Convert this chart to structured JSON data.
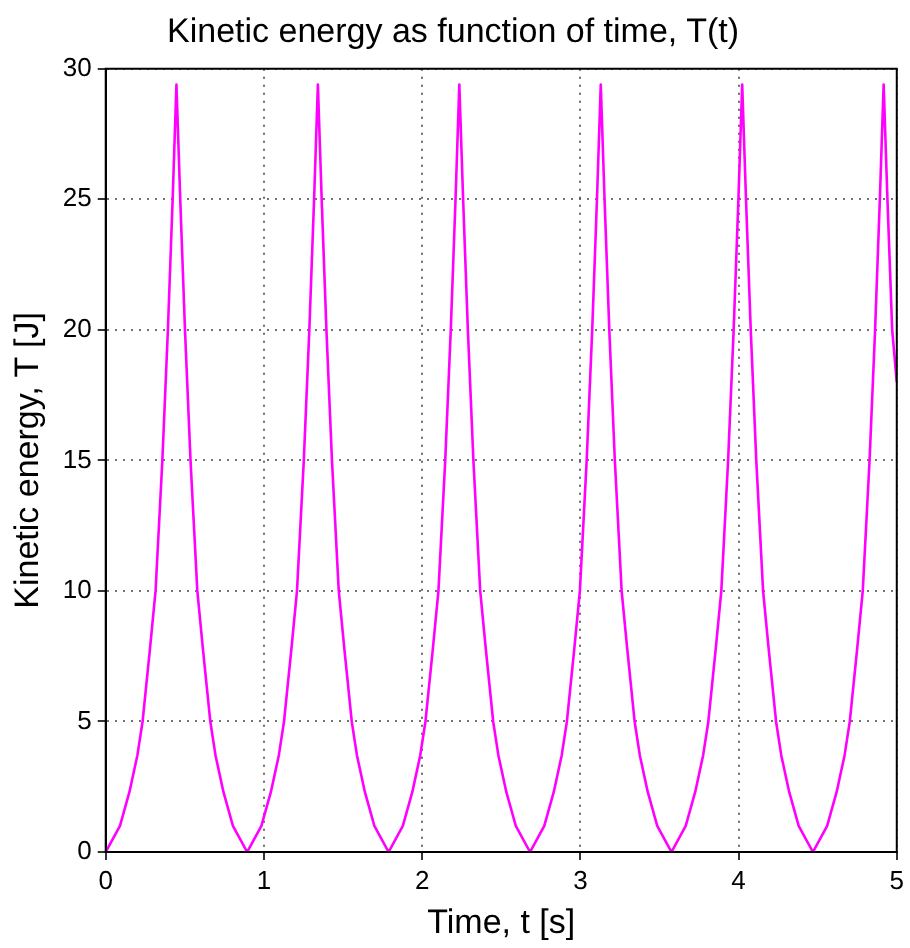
{
  "chart_data": {
    "type": "line",
    "title": "Kinetic energy as function of time, T(t)",
    "xlabel": "Time, t [s]",
    "ylabel": "Kinetic energy, T [J]",
    "xlim": [
      0,
      5
    ],
    "xticks": [
      0,
      1,
      2,
      3,
      4,
      5
    ],
    "ylim": [
      0,
      30
    ],
    "yticks": [
      0,
      5,
      10,
      15,
      20,
      25,
      30
    ],
    "grid": true,
    "legend": false,
    "marker": "none",
    "line_style": "solid",
    "series": [
      {
        "color": "#ff00ff",
        "x": [
          0,
          0.09,
          0.15,
          0.2,
          0.233,
          0.28,
          0.315,
          0.358,
          0.393,
          0.423,
          0.447,
          0.471,
          0.501,
          0.536,
          0.579,
          0.614,
          0.661,
          0.694,
          0.744,
          0.804,
          0.894,
          0.984,
          1.044,
          1.094,
          1.127,
          1.174,
          1.209,
          1.252,
          1.287,
          1.317,
          1.341,
          1.365,
          1.395,
          1.43,
          1.473,
          1.508,
          1.555,
          1.588,
          1.638,
          1.698,
          1.788,
          1.878,
          1.938,
          1.988,
          2.021,
          2.068,
          2.103,
          2.146,
          2.181,
          2.211,
          2.235,
          2.259,
          2.289,
          2.324,
          2.367,
          2.402,
          2.449,
          2.482,
          2.532,
          2.592,
          2.682,
          2.772,
          2.832,
          2.882,
          2.915,
          2.962,
          2.997,
          3.04,
          3.075,
          3.105,
          3.129,
          3.153,
          3.183,
          3.218,
          3.261,
          3.296,
          3.343,
          3.376,
          3.426,
          3.486,
          3.576,
          3.666,
          3.726,
          3.776,
          3.809,
          3.856,
          3.891,
          3.934,
          3.969,
          3.999,
          4.023,
          4.047,
          4.077,
          4.112,
          4.155,
          4.19,
          4.237,
          4.27,
          4.32,
          4.38,
          4.47,
          4.56,
          4.62,
          4.67,
          4.703,
          4.75,
          4.785,
          4.828,
          4.863,
          4.893,
          4.917,
          4.941,
          4.971,
          5
        ],
        "values": [
          0,
          1,
          2.3,
          3.7,
          5,
          7.8,
          10,
          15,
          20,
          25,
          29.4,
          25,
          20,
          15,
          10,
          7.8,
          5,
          3.7,
          2.3,
          1,
          0,
          1,
          2.3,
          3.7,
          5,
          7.8,
          10,
          15,
          20,
          25,
          29.4,
          25,
          20,
          15,
          10,
          7.8,
          5,
          3.7,
          2.3,
          1,
          0,
          1,
          2.3,
          3.7,
          5,
          7.8,
          10,
          15,
          20,
          25,
          29.4,
          25,
          20,
          15,
          10,
          7.8,
          5,
          3.7,
          2.3,
          1,
          0,
          1,
          2.3,
          3.7,
          5,
          7.8,
          10,
          15,
          20,
          25,
          29.4,
          25,
          20,
          15,
          10,
          7.8,
          5,
          3.7,
          2.3,
          1,
          0,
          1,
          2.3,
          3.7,
          5,
          7.8,
          10,
          15,
          20,
          25,
          29.4,
          25,
          20,
          15,
          10,
          7.8,
          5,
          3.7,
          2.3,
          1,
          0,
          1,
          2.3,
          3.7,
          5,
          7.8,
          10,
          15,
          20,
          25,
          29.4,
          25,
          20,
          18
        ]
      }
    ]
  }
}
